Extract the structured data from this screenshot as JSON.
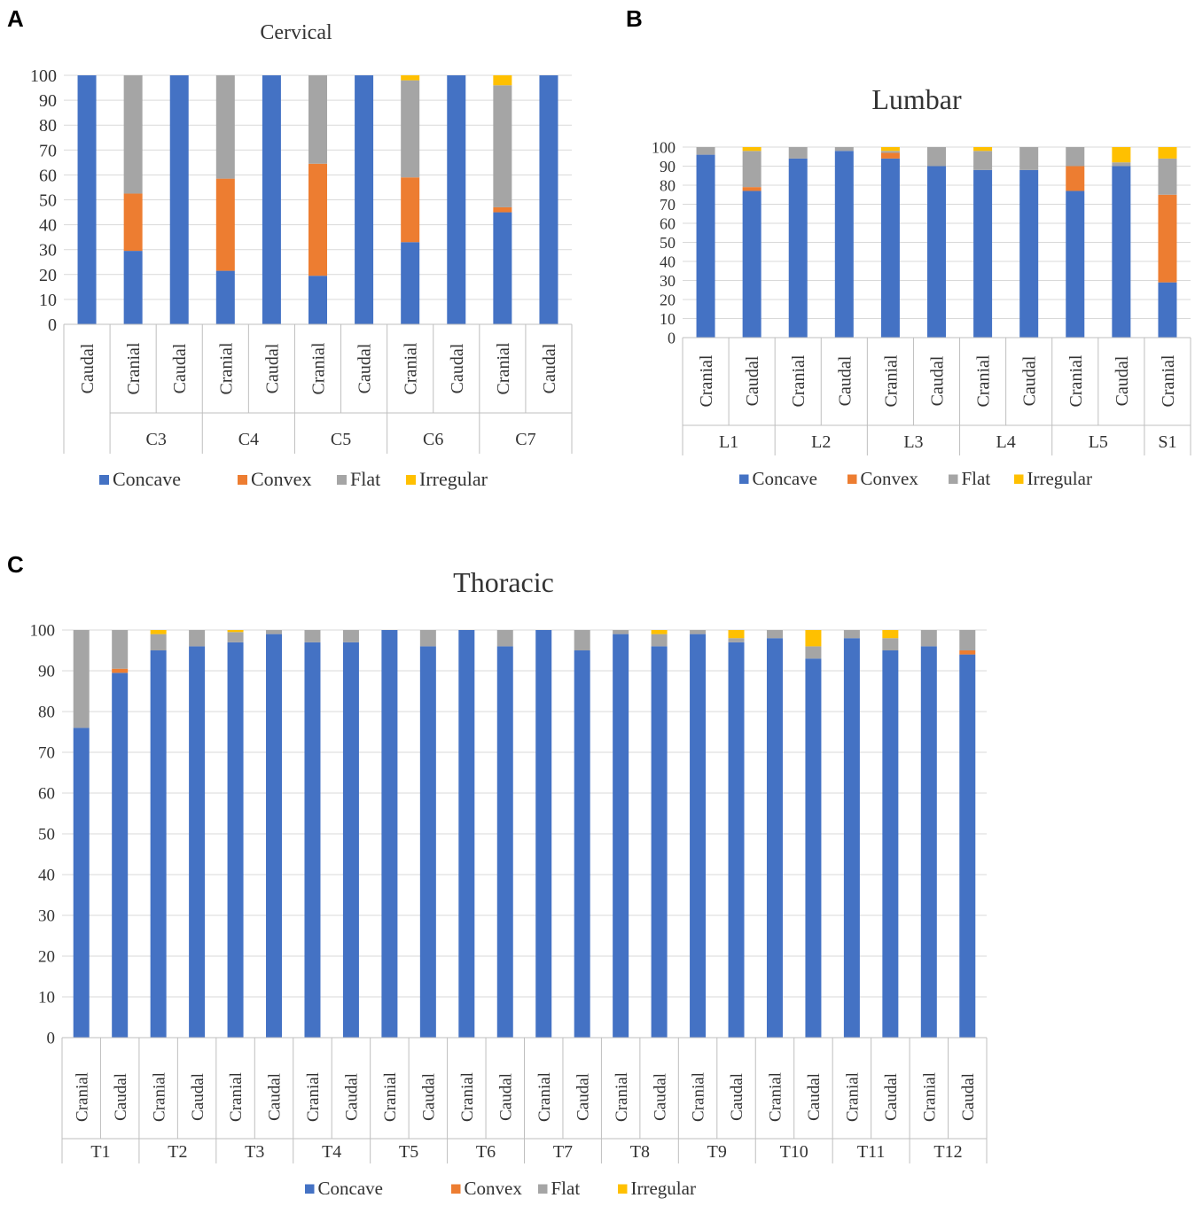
{
  "panels": [
    {
      "letter": "A"
    },
    {
      "letter": "B"
    },
    {
      "letter": "C"
    }
  ],
  "chart_data": [
    {
      "type": "bar",
      "stacked": true,
      "title": "Cervical",
      "ylim": [
        0,
        100
      ],
      "yticks": [
        0,
        10,
        20,
        30,
        40,
        50,
        60,
        70,
        80,
        90,
        100
      ],
      "legend_position": "bottom",
      "groups": [
        {
          "label": "",
          "categories": [
            "Caudal"
          ]
        },
        {
          "label": "C3",
          "categories": [
            "Cranial",
            "Caudal"
          ]
        },
        {
          "label": "C4",
          "categories": [
            "Cranial",
            "Caudal"
          ]
        },
        {
          "label": "C5",
          "categories": [
            "Cranial",
            "Caudal"
          ]
        },
        {
          "label": "C6",
          "categories": [
            "Cranial",
            "Caudal"
          ]
        },
        {
          "label": "C7",
          "categories": [
            "Cranial",
            "Caudal"
          ]
        }
      ],
      "series": [
        {
          "name": "Concave",
          "color": "#4472C4",
          "values": [
            100,
            29.5,
            100,
            21.5,
            100,
            19.5,
            100,
            33,
            100,
            45,
            100
          ]
        },
        {
          "name": "Convex",
          "color": "#ED7D31",
          "values": [
            0,
            23,
            0,
            37,
            0,
            45,
            0,
            26,
            0,
            2,
            0
          ]
        },
        {
          "name": "Flat",
          "color": "#A5A5A5",
          "values": [
            0,
            47.5,
            0,
            41.5,
            0,
            35.5,
            0,
            39,
            0,
            49,
            0
          ]
        },
        {
          "name": "Irregular",
          "color": "#FFC000",
          "values": [
            0,
            0,
            0,
            0,
            0,
            0,
            0,
            2,
            0,
            4,
            0
          ]
        }
      ]
    },
    {
      "type": "bar",
      "stacked": true,
      "title": "Lumbar",
      "ylim": [
        0,
        100
      ],
      "yticks": [
        0,
        10,
        20,
        30,
        40,
        50,
        60,
        70,
        80,
        90,
        100
      ],
      "legend_position": "bottom",
      "groups": [
        {
          "label": "L1",
          "categories": [
            "Cranial",
            "Caudal"
          ]
        },
        {
          "label": "L2",
          "categories": [
            "Cranial",
            "Caudal"
          ]
        },
        {
          "label": "L3",
          "categories": [
            "Cranial",
            "Caudal"
          ]
        },
        {
          "label": "L4",
          "categories": [
            "Cranial",
            "Caudal"
          ]
        },
        {
          "label": "L5",
          "categories": [
            "Cranial",
            "Caudal"
          ]
        },
        {
          "label": "S1",
          "categories": [
            "Cranial"
          ]
        }
      ],
      "series": [
        {
          "name": "Concave",
          "color": "#4472C4",
          "values": [
            96,
            77,
            94,
            98,
            94,
            90,
            88,
            88,
            77,
            90,
            29
          ]
        },
        {
          "name": "Convex",
          "color": "#ED7D31",
          "values": [
            0,
            2,
            0,
            0,
            3,
            0,
            0,
            0,
            13,
            0,
            46
          ]
        },
        {
          "name": "Flat",
          "color": "#A5A5A5",
          "values": [
            4,
            19,
            6,
            2,
            1,
            10,
            10,
            12,
            10,
            2,
            19
          ]
        },
        {
          "name": "Irregular",
          "color": "#FFC000",
          "values": [
            0,
            2,
            0,
            0,
            2,
            0,
            2,
            0,
            0,
            8,
            6
          ]
        }
      ]
    },
    {
      "type": "bar",
      "stacked": true,
      "title": "Thoracic",
      "ylim": [
        0,
        100
      ],
      "yticks": [
        0,
        10,
        20,
        30,
        40,
        50,
        60,
        70,
        80,
        90,
        100
      ],
      "legend_position": "bottom",
      "groups": [
        {
          "label": "T1",
          "categories": [
            "Cranial",
            "Caudal"
          ]
        },
        {
          "label": "T2",
          "categories": [
            "Cranial",
            "Caudal"
          ]
        },
        {
          "label": "T3",
          "categories": [
            "Cranial",
            "Caudal"
          ]
        },
        {
          "label": "T4",
          "categories": [
            "Cranial",
            "Caudal"
          ]
        },
        {
          "label": "T5",
          "categories": [
            "Cranial",
            "Caudal"
          ]
        },
        {
          "label": "T6",
          "categories": [
            "Cranial",
            "Caudal"
          ]
        },
        {
          "label": "T7",
          "categories": [
            "Cranial",
            "Caudal"
          ]
        },
        {
          "label": "T8",
          "categories": [
            "Cranial",
            "Caudal"
          ]
        },
        {
          "label": "T9",
          "categories": [
            "Cranial",
            "Caudal"
          ]
        },
        {
          "label": "T10",
          "categories": [
            "Cranial",
            "Caudal"
          ]
        },
        {
          "label": "T11",
          "categories": [
            "Cranial",
            "Caudal"
          ]
        },
        {
          "label": "T12",
          "categories": [
            "Cranial",
            "Caudal"
          ]
        }
      ],
      "series": [
        {
          "name": "Concave",
          "color": "#4472C4",
          "values": [
            76,
            89.5,
            95,
            96,
            97,
            99,
            97,
            97,
            100,
            96,
            100,
            96,
            100,
            95,
            99,
            96,
            99,
            97,
            98,
            93,
            98,
            95,
            96,
            94
          ]
        },
        {
          "name": "Convex",
          "color": "#ED7D31",
          "values": [
            0,
            1,
            0,
            0,
            0,
            0,
            0,
            0,
            0,
            0,
            0,
            0,
            0,
            0,
            0,
            0,
            0,
            0,
            0,
            0,
            0,
            0,
            0,
            1
          ]
        },
        {
          "name": "Flat",
          "color": "#A5A5A5",
          "values": [
            24,
            9.5,
            4,
            4,
            2.5,
            1,
            3,
            3,
            0,
            4,
            0,
            4,
            0,
            5,
            1,
            3,
            1,
            1,
            2,
            3,
            2,
            3,
            4,
            5
          ]
        },
        {
          "name": "Irregular",
          "color": "#FFC000",
          "values": [
            0,
            0,
            1,
            0,
            0.5,
            0,
            0,
            0,
            0,
            0,
            0,
            0,
            0,
            0,
            0,
            1,
            0,
            2,
            0,
            4,
            0,
            2,
            0,
            0
          ]
        }
      ]
    }
  ]
}
